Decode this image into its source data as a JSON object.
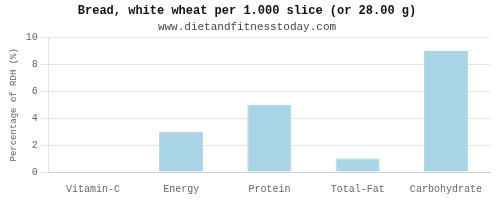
{
  "chart_data": {
    "type": "bar",
    "title": "Bread, white wheat per 1.000 slice (or 28.00 g)",
    "subtitle": "www.dietandfitnesstoday.com",
    "categories": [
      "Vitamin-C",
      "Energy",
      "Protein",
      "Total-Fat",
      "Carbohydrate"
    ],
    "values": [
      0,
      3,
      5,
      1,
      9
    ],
    "color": "#a8d4e6",
    "ylabel": "Percentage of RDH (%)",
    "ylim": [
      0,
      10
    ],
    "yticks": [
      0,
      2,
      4,
      6,
      8,
      10
    ],
    "grid": true
  }
}
